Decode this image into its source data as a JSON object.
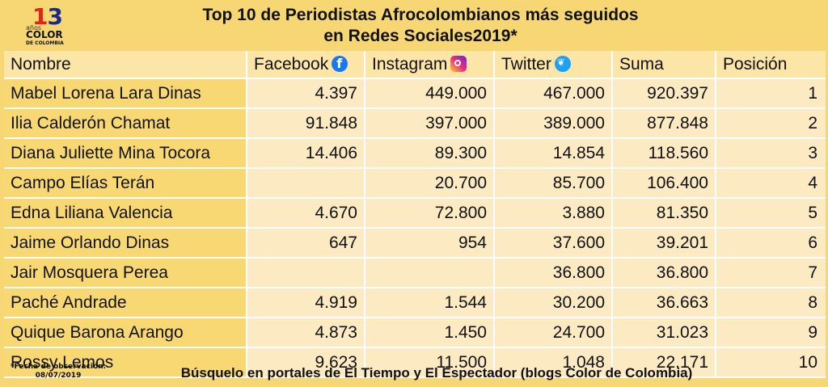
{
  "logo": {
    "number_first": "1",
    "number_second": "3",
    "years": "años",
    "brand_line1": "COLOR",
    "brand_line2": "DE COLOMBIA"
  },
  "title": {
    "line1": "Top 10 de Periodistas Afrocolombianos más seguidos",
    "line2": "en Redes Sociales2019*"
  },
  "headers": {
    "nombre": "Nombre",
    "facebook": "Facebook",
    "instagram": "Instagram",
    "twitter": "Twitter",
    "suma": "Suma",
    "posicion": "Posición"
  },
  "icons": {
    "facebook": "facebook-icon",
    "instagram": "instagram-icon",
    "twitter": "twitter-icon"
  },
  "rows": [
    {
      "nombre": "Mabel Lorena Lara Dinas",
      "facebook": "4.397",
      "instagram": "449.000",
      "twitter": "467.000",
      "suma": "920.397",
      "posicion": "1"
    },
    {
      "nombre": "Ilia Calderón Chamat",
      "facebook": "91.848",
      "instagram": "397.000",
      "twitter": "389.000",
      "suma": "877.848",
      "posicion": "2"
    },
    {
      "nombre": "Diana Juliette Mina Tocora",
      "facebook": "14.406",
      "instagram": "89.300",
      "twitter": "14.854",
      "suma": "118.560",
      "posicion": "3"
    },
    {
      "nombre": "Campo Elías Terán",
      "facebook": "",
      "instagram": "20.700",
      "twitter": "85.700",
      "suma": "106.400",
      "posicion": "4"
    },
    {
      "nombre": "Edna Liliana Valencia",
      "facebook": "4.670",
      "instagram": "72.800",
      "twitter": "3.880",
      "suma": "81.350",
      "posicion": "5"
    },
    {
      "nombre": "Jaime Orlando Dinas",
      "facebook": "647",
      "instagram": "954",
      "twitter": "37.600",
      "suma": "39.201",
      "posicion": "6"
    },
    {
      "nombre": "Jair Mosquera Perea",
      "facebook": "",
      "instagram": "",
      "twitter": "36.800",
      "suma": "36.800",
      "posicion": "7"
    },
    {
      "nombre": "Paché Andrade",
      "facebook": "4.919",
      "instagram": "1.544",
      "twitter": "30.200",
      "suma": "36.663",
      "posicion": "8"
    },
    {
      "nombre": "Quique Barona Arango",
      "facebook": "4.873",
      "instagram": "1.450",
      "twitter": "24.700",
      "suma": "31.023",
      "posicion": "9"
    },
    {
      "nombre": "Rossy Lemos",
      "facebook": "9.623",
      "instagram": "11.500",
      "twitter": "1.048",
      "suma": "22.171",
      "posicion": "10"
    }
  ],
  "footer": {
    "note_line1": "*Fecha de observación:",
    "note_line2": "08/07/2019",
    "main": "Búsquelo en portales de El Tiempo y El Espectador (blogs Color de Colombia)"
  },
  "colors": {
    "background": "#f7d774",
    "name_cell": "#f8d873",
    "value_cell": "#fbeac2",
    "header_row": "#fbe6a8"
  }
}
